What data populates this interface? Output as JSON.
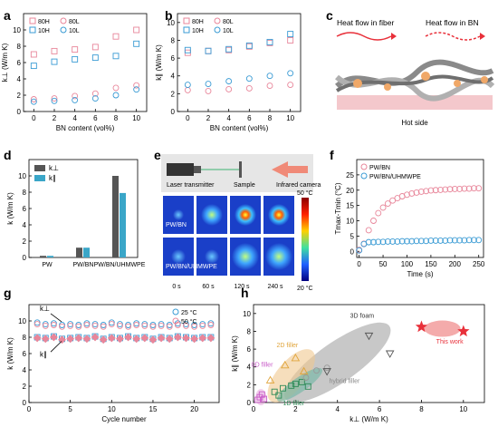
{
  "panel_labels": {
    "a": "a",
    "b": "b",
    "c": "c",
    "d": "d",
    "e": "e",
    "f": "f",
    "g": "g",
    "h": "h"
  },
  "colors": {
    "pink": "#e8869a",
    "blue": "#3a9bd4",
    "dark_gray": "#555555",
    "teal": "#3aa6c8",
    "green": "#2e8b57",
    "orange": "#e0a43a",
    "purple": "#c85ac8",
    "red": "#e8303a",
    "gray": "#777777"
  },
  "panel_c": {
    "label_fiber": "Heat flow in fiber",
    "label_bn": "Heat flow in BN",
    "label_hot": "Hot side"
  },
  "panel_e": {
    "label_laser": "Laser transmitter",
    "label_sample": "Sample",
    "label_camera": "Infrared camera",
    "row_labels": [
      "PW/BN",
      "PW/BN/UHMWPE"
    ],
    "times": [
      "0 s",
      "60 s",
      "120 s",
      "240 s"
    ],
    "colorbar_max": "50 °C",
    "colorbar_min": "20 °C"
  },
  "chart_data": [
    {
      "id": "a",
      "type": "scatter",
      "xlabel": "BN content (vol%)",
      "ylabel": "k⊥ (W/m K)",
      "xlim": [
        -1,
        11
      ],
      "ylim": [
        0,
        12
      ],
      "xticks": [
        0,
        2,
        4,
        6,
        8,
        10
      ],
      "yticks": [
        0,
        2,
        4,
        6,
        8,
        10
      ],
      "legend_position": "top-left",
      "x": [
        0,
        2,
        4,
        6,
        8,
        10
      ],
      "series": [
        {
          "name": "80H",
          "color": "#e8869a",
          "marker": "square",
          "values": [
            7.0,
            7.4,
            7.6,
            7.9,
            9.2,
            10.0
          ]
        },
        {
          "name": "80L",
          "color": "#e8869a",
          "marker": "circle",
          "values": [
            1.5,
            1.6,
            1.9,
            2.2,
            2.9,
            3.2
          ]
        },
        {
          "name": "10H",
          "color": "#3a9bd4",
          "marker": "square",
          "values": [
            5.6,
            6.1,
            6.4,
            6.6,
            6.8,
            8.3
          ]
        },
        {
          "name": "10L",
          "color": "#3a9bd4",
          "marker": "circle",
          "values": [
            1.2,
            1.3,
            1.4,
            1.6,
            2.0,
            2.7
          ]
        }
      ]
    },
    {
      "id": "b",
      "type": "scatter",
      "xlabel": "BN content (vol%)",
      "ylabel": "k∥ (W/m K)",
      "xlim": [
        -1,
        11
      ],
      "ylim": [
        0,
        11
      ],
      "xticks": [
        0,
        2,
        4,
        6,
        8,
        10
      ],
      "yticks": [
        0,
        2,
        4,
        6,
        8,
        10
      ],
      "legend_position": "top-left",
      "x": [
        0,
        2,
        4,
        6,
        8,
        10
      ],
      "series": [
        {
          "name": "80H",
          "color": "#e8869a",
          "marker": "square",
          "values": [
            6.6,
            6.8,
            6.9,
            7.3,
            7.7,
            8.0
          ]
        },
        {
          "name": "80L",
          "color": "#e8869a",
          "marker": "circle",
          "values": [
            2.4,
            2.3,
            2.5,
            2.6,
            2.9,
            3.0
          ]
        },
        {
          "name": "10H",
          "color": "#3a9bd4",
          "marker": "square",
          "values": [
            6.9,
            6.8,
            7.0,
            7.4,
            7.8,
            8.7
          ]
        },
        {
          "name": "10L",
          "color": "#3a9bd4",
          "marker": "circle",
          "values": [
            3.0,
            3.1,
            3.4,
            3.7,
            4.0,
            4.3
          ]
        }
      ]
    },
    {
      "id": "d",
      "type": "bar",
      "ylabel": "k (W/m K)",
      "ylim": [
        0,
        12
      ],
      "yticks": [
        0,
        2,
        4,
        6,
        8,
        10
      ],
      "categories": [
        "PW",
        "PW/BN",
        "PW/BN/UHMWPE"
      ],
      "legend_position": "top-left",
      "series": [
        {
          "name": "k⊥",
          "color": "#555555",
          "values": [
            0.2,
            1.2,
            10.0
          ]
        },
        {
          "name": "k∥",
          "color": "#3aa6c8",
          "values": [
            0.2,
            1.2,
            7.9
          ]
        }
      ]
    },
    {
      "id": "f",
      "type": "scatter",
      "xlabel": "Time (s)",
      "ylabel": "Tmax-Tmin (°C)",
      "xlim": [
        -5,
        260
      ],
      "ylim": [
        -2,
        30
      ],
      "xticks": [
        0,
        50,
        100,
        150,
        200,
        250
      ],
      "yticks": [
        0,
        5,
        10,
        15,
        20,
        25
      ],
      "legend_position": "top-left",
      "series": [
        {
          "name": "PW/BN",
          "color": "#e8869a",
          "marker": "circle",
          "x": [
            0,
            10,
            20,
            30,
            40,
            50,
            60,
            70,
            80,
            90,
            100,
            110,
            120,
            130,
            140,
            150,
            160,
            170,
            180,
            190,
            200,
            210,
            220,
            230,
            240,
            250
          ],
          "values": [
            0.5,
            2.5,
            6.9,
            10.0,
            12.5,
            14.3,
            15.6,
            16.6,
            17.4,
            18.0,
            18.5,
            18.9,
            19.2,
            19.5,
            19.7,
            19.9,
            20.0,
            20.1,
            20.2,
            20.3,
            20.4,
            20.4,
            20.5,
            20.5,
            20.6,
            20.6
          ]
        },
        {
          "name": "PW/BN/UHMWPE",
          "color": "#3a9bd4",
          "marker": "circle",
          "x": [
            0,
            10,
            20,
            30,
            40,
            50,
            60,
            70,
            80,
            90,
            100,
            110,
            120,
            130,
            140,
            150,
            160,
            170,
            180,
            190,
            200,
            210,
            220,
            230,
            240,
            250
          ],
          "values": [
            0.3,
            2.4,
            3.0,
            3.0,
            3.1,
            3.1,
            3.2,
            3.2,
            3.2,
            3.3,
            3.3,
            3.3,
            3.4,
            3.4,
            3.4,
            3.5,
            3.5,
            3.5,
            3.5,
            3.6,
            3.6,
            3.6,
            3.6,
            3.7,
            3.7,
            3.7
          ]
        }
      ]
    },
    {
      "id": "g",
      "type": "scatter",
      "xlabel": "Cycle number",
      "ylabel": "k (W/m K)",
      "xlim": [
        0,
        23
      ],
      "ylim": [
        0,
        12
      ],
      "xticks": [
        0,
        5,
        10,
        15,
        20
      ],
      "yticks": [
        0,
        2,
        4,
        6,
        8,
        10
      ],
      "legend_position": "top-right",
      "annotations": [
        "k⊥",
        "k∥"
      ],
      "series": [
        {
          "name": "25 °C",
          "color": "#3a9bd4",
          "marker": "circle",
          "x": [
            1,
            2,
            3,
            4,
            5,
            6,
            7,
            8,
            9,
            10,
            11,
            12,
            13,
            14,
            15,
            16,
            17,
            18,
            19,
            20,
            21,
            22
          ],
          "values": [
            9.8,
            9.6,
            9.7,
            9.5,
            9.6,
            9.5,
            9.7,
            9.6,
            9.5,
            9.8,
            9.6,
            9.5,
            9.7,
            9.6,
            9.5,
            9.6,
            9.5,
            9.7,
            9.6,
            9.5,
            9.6,
            9.7
          ]
        },
        {
          "name": "50 °C",
          "color": "#e8869a",
          "marker": "circle",
          "x": [
            1,
            2,
            3,
            4,
            5,
            6,
            7,
            8,
            9,
            10,
            11,
            12,
            13,
            14,
            15,
            16,
            17,
            18,
            19,
            20,
            21,
            22
          ],
          "values": [
            9.6,
            9.4,
            9.5,
            9.3,
            9.4,
            9.3,
            9.5,
            9.4,
            9.3,
            9.6,
            9.4,
            9.3,
            9.5,
            9.4,
            9.3,
            9.4,
            9.3,
            9.5,
            9.4,
            9.3,
            9.4,
            9.5
          ]
        },
        {
          "name": "25 °C k∥",
          "color": "#3a9bd4",
          "marker": "square",
          "x": [
            1,
            2,
            3,
            4,
            5,
            6,
            7,
            8,
            9,
            10,
            11,
            12,
            13,
            14,
            15,
            16,
            17,
            18,
            19,
            20,
            21,
            22
          ],
          "values": [
            8.0,
            7.9,
            8.1,
            7.8,
            7.9,
            8.0,
            7.9,
            8.1,
            7.8,
            8.0,
            7.9,
            8.1,
            7.9,
            8.0,
            7.8,
            8.0,
            7.9,
            8.1,
            8.0,
            7.9,
            8.0,
            8.0
          ]
        },
        {
          "name": "50 °C k∥",
          "color": "#e8869a",
          "marker": "diamond",
          "x": [
            1,
            2,
            3,
            4,
            5,
            6,
            7,
            8,
            9,
            10,
            11,
            12,
            13,
            14,
            15,
            16,
            17,
            18,
            19,
            20,
            21,
            22
          ],
          "values": [
            7.9,
            7.8,
            8.0,
            7.7,
            7.8,
            7.9,
            7.8,
            8.0,
            7.7,
            7.9,
            7.8,
            8.0,
            7.8,
            7.9,
            7.7,
            7.9,
            7.8,
            8.0,
            7.9,
            7.8,
            7.9,
            7.9
          ]
        }
      ]
    },
    {
      "id": "h",
      "type": "scatter",
      "xlabel": "k⊥ (W/m K)",
      "ylabel": "k∥ (W/m K)",
      "xlim": [
        0,
        11
      ],
      "ylim": [
        0,
        11
      ],
      "xticks": [
        0,
        2,
        4,
        6,
        8,
        10
      ],
      "yticks": [
        0,
        2,
        4,
        6,
        8,
        10
      ],
      "regions": [
        "0D filler",
        "1D filler",
        "2D filler",
        "3D foam",
        "hybrid filler",
        "This work"
      ],
      "series": [
        {
          "name": "0D filler",
          "color": "#c85ac8",
          "marker": "square",
          "x": [
            0.2,
            0.3,
            0.5,
            0.4
          ],
          "values": [
            0.3,
            0.6,
            0.4,
            0.9
          ]
        },
        {
          "name": "1D filler",
          "color": "#2e8b57",
          "marker": "square",
          "x": [
            1.0,
            1.4,
            1.8,
            2.0,
            2.3,
            2.6,
            1.2
          ],
          "values": [
            1.2,
            1.6,
            1.9,
            2.1,
            2.3,
            1.8,
            0.8
          ]
        },
        {
          "name": "2D filler",
          "color": "#e0a43a",
          "marker": "triangle",
          "x": [
            2.0,
            2.4,
            0.8,
            1.5
          ],
          "values": [
            5.0,
            3.5,
            2.5,
            4.2
          ]
        },
        {
          "name": "hybrid filler",
          "color": "#999999",
          "marker": "circle",
          "x": [
            2.5,
            3.0,
            3.5
          ],
          "values": [
            2.8,
            3.6,
            3.9
          ]
        },
        {
          "name": "3D foam",
          "color": "#555555",
          "marker": "triangle-down",
          "x": [
            3.5,
            5.5,
            6.5
          ],
          "values": [
            3.5,
            7.5,
            5.5
          ]
        },
        {
          "name": "This work",
          "color": "#e8303a",
          "marker": "star",
          "x": [
            8.0,
            10.0
          ],
          "values": [
            8.5,
            8.0
          ]
        }
      ]
    }
  ]
}
